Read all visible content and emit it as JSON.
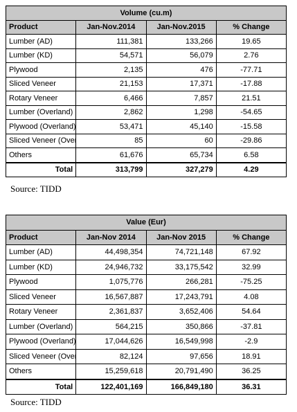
{
  "volume_table": {
    "title": "Volume (cu.m)",
    "headers": [
      "Product",
      "Jan-Nov.2014",
      "Jan-Nov.2015",
      "% Change"
    ],
    "rows": [
      {
        "product": "Lumber (AD)",
        "y2014": "111,381",
        "y2015": "133,266",
        "change": "19.65"
      },
      {
        "product": "Lumber (KD)",
        "y2014": "54,571",
        "y2015": "56,079",
        "change": "2.76"
      },
      {
        "product": "Plywood",
        "y2014": "2,135",
        "y2015": "476",
        "change": "-77.71"
      },
      {
        "product": "Sliced Veneer",
        "y2014": "21,153",
        "y2015": "17,371",
        "change": "-17.88"
      },
      {
        "product": "Rotary Veneer",
        "y2014": "6,466",
        "y2015": "7,857",
        "change": "21.51"
      },
      {
        "product": "Lumber (Overland)",
        "y2014": "2,862",
        "y2015": "1,298",
        "change": "-54.65"
      },
      {
        "product": "Plywood (Overland)",
        "y2014": "53,471",
        "y2015": "45,140",
        "change": "-15.58"
      },
      {
        "product": "Sliced Veneer (Overland)",
        "y2014": "85",
        "y2015": "60",
        "change": "-29.86"
      },
      {
        "product": "Others",
        "y2014": "61,676",
        "y2015": "65,734",
        "change": "6.58"
      }
    ],
    "total": {
      "label": "Total",
      "y2014": "313,799",
      "y2015": "327,279",
      "change": "4.29"
    },
    "source": "Source: TIDD"
  },
  "value_table": {
    "title": "Value (Eur)",
    "headers": [
      "Product",
      "Jan-Nov 2014",
      "Jan-Nov 2015",
      "% Change"
    ],
    "rows": [
      {
        "product": "Lumber (AD)",
        "y2014": "44,498,354",
        "y2015": "74,721,148",
        "change": "67.92"
      },
      {
        "product": "Lumber (KD)",
        "y2014": "24,946,732",
        "y2015": "33,175,542",
        "change": "32.99"
      },
      {
        "product": "Plywood",
        "y2014": "1,075,776",
        "y2015": "266,281",
        "change": "-75.25"
      },
      {
        "product": "Sliced Veneer",
        "y2014": "16,567,887",
        "y2015": "17,243,791",
        "change": "4.08"
      },
      {
        "product": "Rotary Veneer",
        "y2014": "2,361,837",
        "y2015": "3,652,406",
        "change": "54.64"
      },
      {
        "product": "Lumber (Overland)",
        "y2014": "564,215",
        "y2015": "350,866",
        "change": "-37.81"
      },
      {
        "product": "Plywood (Overland)",
        "y2014": "17,044,626",
        "y2015": "16,549,998",
        "change": "-2.9"
      },
      {
        "product": "Sliced Veneer (Overland)",
        "y2014": "82,124",
        "y2015": "97,656",
        "change": "18.91"
      },
      {
        "product": "Others",
        "y2014": "15,259,618",
        "y2015": "20,791,490",
        "change": "36.25"
      }
    ],
    "total": {
      "label": "Total",
      "y2014": "122,401,169",
      "y2015": "166,849,180",
      "change": "36.31"
    },
    "source": "Source: TIDD"
  }
}
